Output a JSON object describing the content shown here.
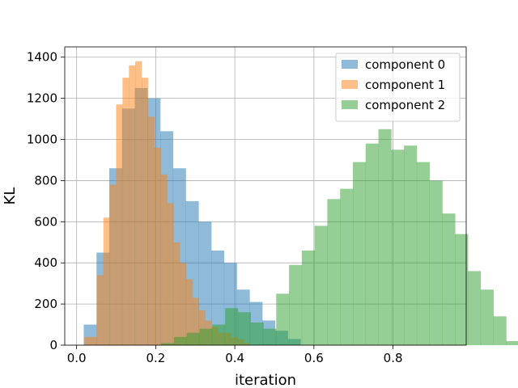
{
  "chart_data": {
    "type": "bar",
    "subtype": "histogram",
    "title": "",
    "xlabel": "iteration",
    "ylabel": "KL",
    "xlim": [
      -0.03,
      0.985
    ],
    "ylim": [
      0,
      1450
    ],
    "xticks": [
      0.0,
      0.2,
      0.4,
      0.6,
      0.8
    ],
    "xtick_labels": [
      "0.0",
      "0.2",
      "0.4",
      "0.6",
      "0.8"
    ],
    "yticks": [
      0,
      200,
      400,
      600,
      800,
      1000,
      1200,
      1400
    ],
    "ytick_labels": [
      "0",
      "200",
      "400",
      "600",
      "800",
      "1000",
      "1200",
      "1400"
    ],
    "grid": true,
    "legend_position": "top-right",
    "series": [
      {
        "name": "component 0",
        "color": "#1f77b4",
        "alpha": 0.5,
        "bin_start": 0.018,
        "bin_width": 0.03225,
        "counts": [
          100,
          450,
          860,
          1150,
          1250,
          1200,
          1040,
          860,
          700,
          600,
          460,
          400,
          270,
          210,
          120,
          70,
          30
        ]
      },
      {
        "name": "component 1",
        "color": "#ff7f0e",
        "alpha": 0.5,
        "bin_start": 0.0195,
        "bin_width": 0.0161,
        "counts": [
          40,
          40,
          340,
          620,
          780,
          1170,
          1300,
          1360,
          1380,
          1300,
          1110,
          960,
          830,
          690,
          500,
          400,
          320,
          230,
          170,
          120,
          90,
          60,
          60,
          40,
          30,
          10
        ]
      },
      {
        "name": "component 2",
        "color": "#2ca02c",
        "alpha": 0.5,
        "bin_start": 0.214,
        "bin_width": 0.0323,
        "counts": [
          10,
          40,
          60,
          80,
          100,
          180,
          160,
          110,
          80,
          250,
          390,
          460,
          580,
          710,
          760,
          890,
          980,
          1050,
          950,
          970,
          890,
          800,
          640,
          540,
          360,
          270,
          140,
          20
        ]
      }
    ]
  }
}
